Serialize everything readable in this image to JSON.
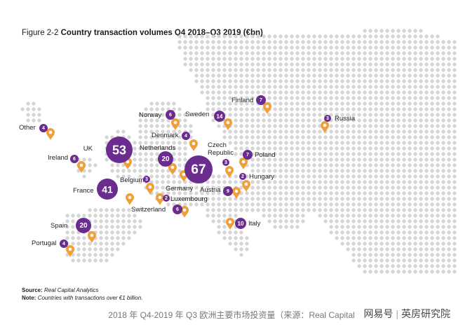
{
  "figure": {
    "number": "Figure 2-2",
    "title": "Country transaction volumes Q4 2018–Q3 2019 (€bn)"
  },
  "notes": {
    "source_label": "Source:",
    "source_value": "Real Capital Analytics",
    "note_label": "Note:",
    "note_value": "Countries with transactions over €1 billion."
  },
  "caption": "2018 年 Q4-2019 年 Q3 欧洲主要市场投资量（来源：Real Capital",
  "watermark": {
    "brand": "网易号",
    "author": "英房研究院"
  },
  "colors": {
    "bubble": "#6b2c8f",
    "pin": "#f0a03a",
    "dots": "#d6d6d6"
  },
  "icons": {
    "marker": "map-pin-icon"
  },
  "countries": [
    {
      "name": "UK",
      "value": 53
    },
    {
      "name": "Germany",
      "value": 67
    },
    {
      "name": "France",
      "value": 41
    },
    {
      "name": "Netherlands",
      "value": 20
    },
    {
      "name": "Spain",
      "value": 20
    },
    {
      "name": "Sweden",
      "value": 14
    },
    {
      "name": "Italy",
      "value": 10
    },
    {
      "name": "Austria",
      "value": 9
    },
    {
      "name": "Finland",
      "value": 7
    },
    {
      "name": "Poland",
      "value": 7
    },
    {
      "name": "Norway",
      "value": 6
    },
    {
      "name": "Ireland",
      "value": 6
    },
    {
      "name": "Switzerland",
      "value": 6
    },
    {
      "name": "Other",
      "value": 4
    },
    {
      "name": "Denmark",
      "value": 4
    },
    {
      "name": "Portugal",
      "value": 4
    },
    {
      "name": "Belgium",
      "value": 3
    },
    {
      "name": "Czech Republic",
      "value": 3
    },
    {
      "name": "Russia",
      "value": 3
    },
    {
      "name": "Luxembourg",
      "value": 2
    },
    {
      "name": "Hungary",
      "value": 2
    }
  ]
}
